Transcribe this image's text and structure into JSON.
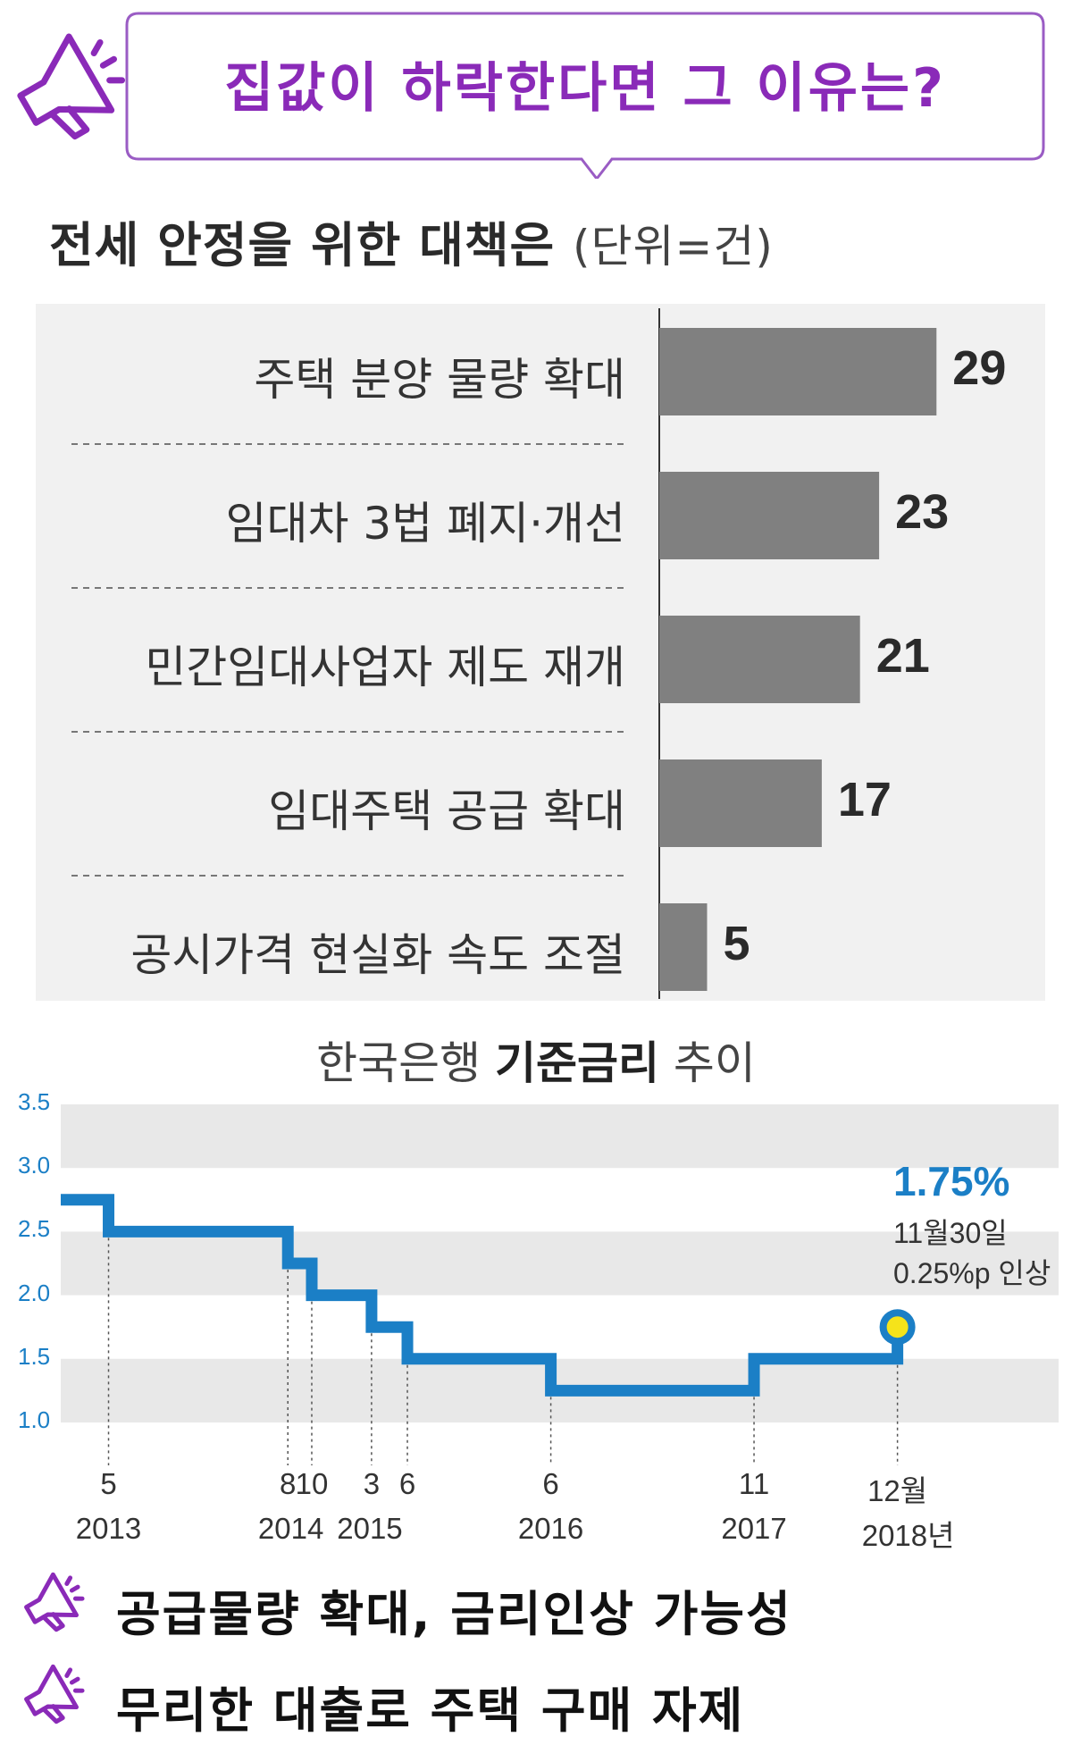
{
  "header": {
    "question": "집값이 하락한다면 그 이유는?",
    "icon": "megaphone-icon",
    "accent_color": "#8a2ab8"
  },
  "chart_data": [
    {
      "type": "bar",
      "orientation": "horizontal",
      "title": "전세 안정을 위한 대책은",
      "unit": "(단위=건)",
      "categories": [
        "주택 분양 물량 확대",
        "임대차 3법 폐지·개선",
        "민간임대사업자 제도 재개",
        "임대주택 공급 확대",
        "공시가격 현실화 속도 조절"
      ],
      "values": [
        29,
        23,
        21,
        17,
        5
      ],
      "bar_color": "#808080"
    },
    {
      "type": "line",
      "style": "step",
      "title_parts": [
        "한국은행 ",
        "기준금리",
        " 추이"
      ],
      "ylim": [
        1.0,
        3.5
      ],
      "yticks": [
        "3.5",
        "3.0",
        "2.5",
        "2.0",
        "1.5",
        "1.0"
      ],
      "line_color": "#1b7fc6",
      "x": [
        "2013-01",
        "2013-05",
        "2014-08",
        "2014-10",
        "2015-03",
        "2015-06",
        "2016-06",
        "2017-11",
        "2018-11"
      ],
      "y": [
        2.75,
        2.5,
        2.25,
        2.0,
        1.75,
        1.5,
        1.25,
        1.5,
        1.75
      ],
      "x_month_labels": [
        "5",
        "8",
        "10",
        "3",
        "6",
        "6",
        "11",
        "12월"
      ],
      "x_year_labels": [
        "2013",
        "2014",
        "2015",
        "2016",
        "2017",
        "2018년"
      ],
      "annotation": {
        "value": "1.75%",
        "date": "11월30일",
        "note": "0.25%p 인상"
      }
    }
  ],
  "bullets": [
    "공급물량 확대, 금리인상 가능성",
    "무리한 대출로 주택 구매 자제"
  ]
}
